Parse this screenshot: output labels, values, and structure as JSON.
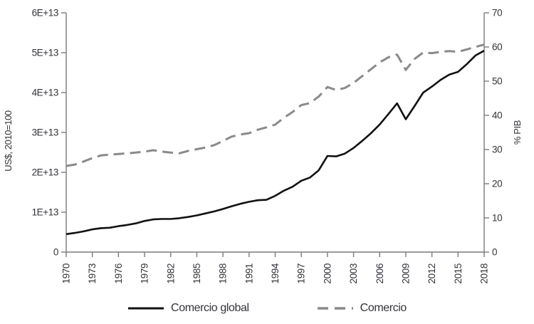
{
  "figure": {
    "left_axis_title": "US$, 2010=100",
    "right_axis_title": "% PIB",
    "legend_items": [
      {
        "label": "Comercio global",
        "style": "solid"
      },
      {
        "label": "Comercio",
        "style": "dashed"
      }
    ]
  },
  "colors": {
    "black_line": "#111111",
    "gray_line": "#8a8a8a",
    "axis": "#7a7a7a",
    "text": "#33333a"
  },
  "chart_data": {
    "type": "line",
    "title": "",
    "xlabel": "",
    "grid": false,
    "legend_position": "bottom",
    "x": [
      1970,
      1971,
      1972,
      1973,
      1974,
      1975,
      1976,
      1977,
      1978,
      1979,
      1980,
      1981,
      1982,
      1983,
      1984,
      1985,
      1986,
      1987,
      1988,
      1989,
      1990,
      1991,
      1992,
      1993,
      1994,
      1995,
      1996,
      1997,
      1998,
      1999,
      2000,
      2001,
      2002,
      2003,
      2004,
      2005,
      2006,
      2007,
      2008,
      2009,
      2010,
      2011,
      2012,
      2013,
      2014,
      2015,
      2016,
      2017,
      2018
    ],
    "x_tick_labels": [
      "1970",
      "1973",
      "1976",
      "1979",
      "1982",
      "1985",
      "1988",
      "1991",
      "1994",
      "1997",
      "2000",
      "2003",
      "2006",
      "2009",
      "2012",
      "2015",
      "2018"
    ],
    "left_axis": {
      "label": "US$, 2010=100",
      "tick_labels": [
        "0",
        "1E+13",
        "2E+13",
        "3E+13",
        "4E+13",
        "5E+13",
        "6E+13"
      ],
      "range": [
        0,
        60000000000000.0
      ]
    },
    "right_axis": {
      "label": "% PIB",
      "tick_labels": [
        "0",
        "10",
        "20",
        "30",
        "40",
        "50",
        "60",
        "70"
      ],
      "range": [
        0,
        70
      ]
    },
    "series": [
      {
        "name": "Comercio global",
        "axis": "left",
        "color": "#111111",
        "dash": null,
        "width": 2.6,
        "values": [
          4500000000000.0,
          4800000000000.0,
          5200000000000.0,
          5700000000000.0,
          6000000000000.0,
          6100000000000.0,
          6500000000000.0,
          6800000000000.0,
          7200000000000.0,
          7800000000000.0,
          8200000000000.0,
          8300000000000.0,
          8300000000000.0,
          8500000000000.0,
          8800000000000.0,
          9200000000000.0,
          9700000000000.0,
          10200000000000.0,
          10800000000000.0,
          11500000000000.0,
          12100000000000.0,
          12600000000000.0,
          13000000000000.0,
          13100000000000.0,
          14100000000000.0,
          15400000000000.0,
          16400000000000.0,
          17900000000000.0,
          18700000000000.0,
          20500000000000.0,
          24100000000000.0,
          24000000000000.0,
          24700000000000.0,
          26100000000000.0,
          27900000000000.0,
          29800000000000.0,
          32000000000000.0,
          34600000000000.0,
          37300000000000.0,
          33300000000000.0,
          36600000000000.0,
          40000000000000.0,
          41500000000000.0,
          43200000000000.0,
          44500000000000.0,
          45200000000000.0,
          47100000000000.0,
          49300000000000.0,
          50500000000000.0
        ]
      },
      {
        "name": "Comercio",
        "axis": "right",
        "color": "#8a8a8a",
        "dash": "15 8",
        "width": 3,
        "values": [
          25.2,
          25.6,
          26.5,
          27.5,
          28.3,
          28.5,
          28.7,
          28.9,
          29.1,
          29.4,
          29.8,
          29.4,
          29.1,
          28.9,
          29.6,
          30.1,
          30.6,
          31.3,
          32.5,
          33.8,
          34.4,
          34.8,
          35.8,
          36.5,
          37.3,
          39.3,
          41.0,
          43.0,
          43.6,
          45.5,
          48.3,
          47.4,
          48.0,
          49.5,
          51.5,
          53.5,
          55.5,
          57.0,
          57.8,
          53.3,
          56.5,
          58.4,
          58.2,
          58.6,
          58.8,
          58.6,
          59.3,
          60.0,
          60.7
        ]
      }
    ]
  }
}
